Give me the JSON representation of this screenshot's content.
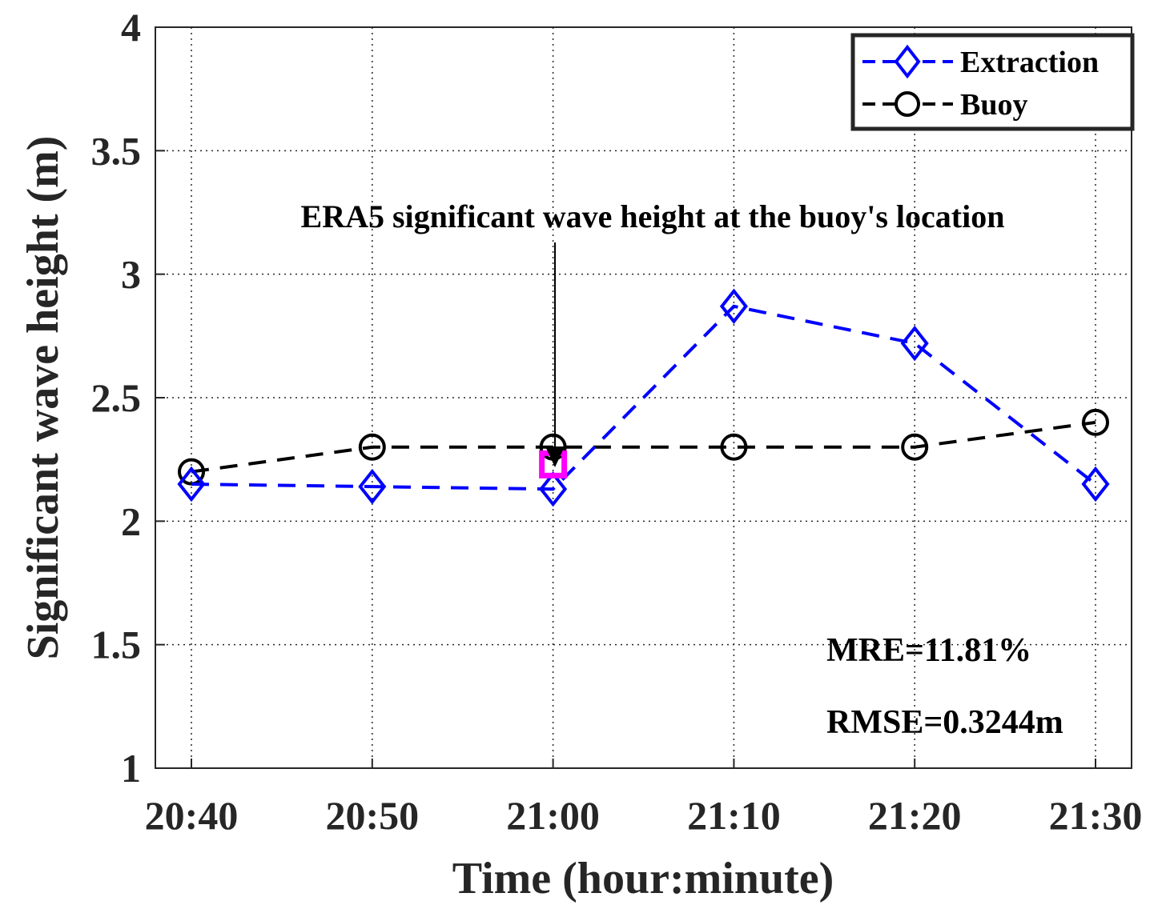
{
  "chart_data": {
    "type": "line",
    "categories": [
      "20:40",
      "20:50",
      "21:00",
      "21:10",
      "21:20",
      "21:30"
    ],
    "series": [
      {
        "name": "Extraction",
        "values": [
          2.15,
          2.14,
          2.13,
          2.87,
          2.72,
          2.15
        ],
        "color": "#0000ff",
        "marker": "diamond",
        "line_style": "dashed"
      },
      {
        "name": "Buoy",
        "values": [
          2.2,
          2.3,
          2.3,
          2.3,
          2.3,
          2.4
        ],
        "color": "#000000",
        "marker": "circle",
        "line_style": "dashed"
      }
    ],
    "era5_point": {
      "category": "21:00",
      "value": 2.23,
      "color": "#ff00ff",
      "marker": "square"
    },
    "annotation": "ERA5 significant wave height at the buoy's location",
    "xlabel": "Time (hour:minute)",
    "ylabel": "Significant wave height (m)",
    "ylim": [
      1,
      4
    ],
    "yticks": [
      "1",
      "1.5",
      "2",
      "2.5",
      "3",
      "3.5",
      "4"
    ],
    "grid": true,
    "legend_position": "top-right",
    "stats": {
      "mre": "MRE=11.81%",
      "rmse": "RMSE=0.3244m"
    }
  }
}
